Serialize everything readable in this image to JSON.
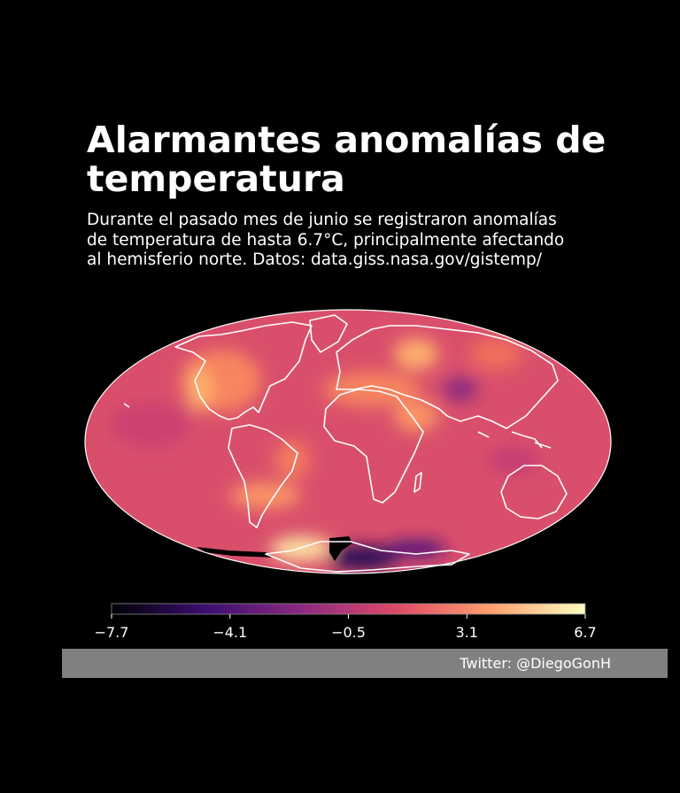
{
  "header": {
    "title": "Alarmantes anomalías de temperatura",
    "subtitle": "Durante el pasado mes de junio se registraron anomalías\nde temperatura de hasta 6.7°C, principalmente afectando\nal hemisferio norte. Datos: data.giss.nasa.gov/gistemp/"
  },
  "map": {
    "projection": "mollweide",
    "variable": "temperature anomaly",
    "unit": "°C",
    "colormap": "magma",
    "background_color": "#d94f6b",
    "coastline_color": "#ffffff",
    "missing_data_color": "#000000"
  },
  "colorbar": {
    "min": -7.7,
    "max": 6.7,
    "tick_labels": [
      "−7.7",
      "−4.1",
      "−0.5",
      "3.1",
      "6.7"
    ],
    "colors": [
      "#000004",
      "#3b0f70",
      "#8c2981",
      "#de4968",
      "#fe9f6d",
      "#fcfdbf"
    ]
  },
  "footer": {
    "credit": "Twitter: @DiegoGonH",
    "background": "#808080"
  }
}
